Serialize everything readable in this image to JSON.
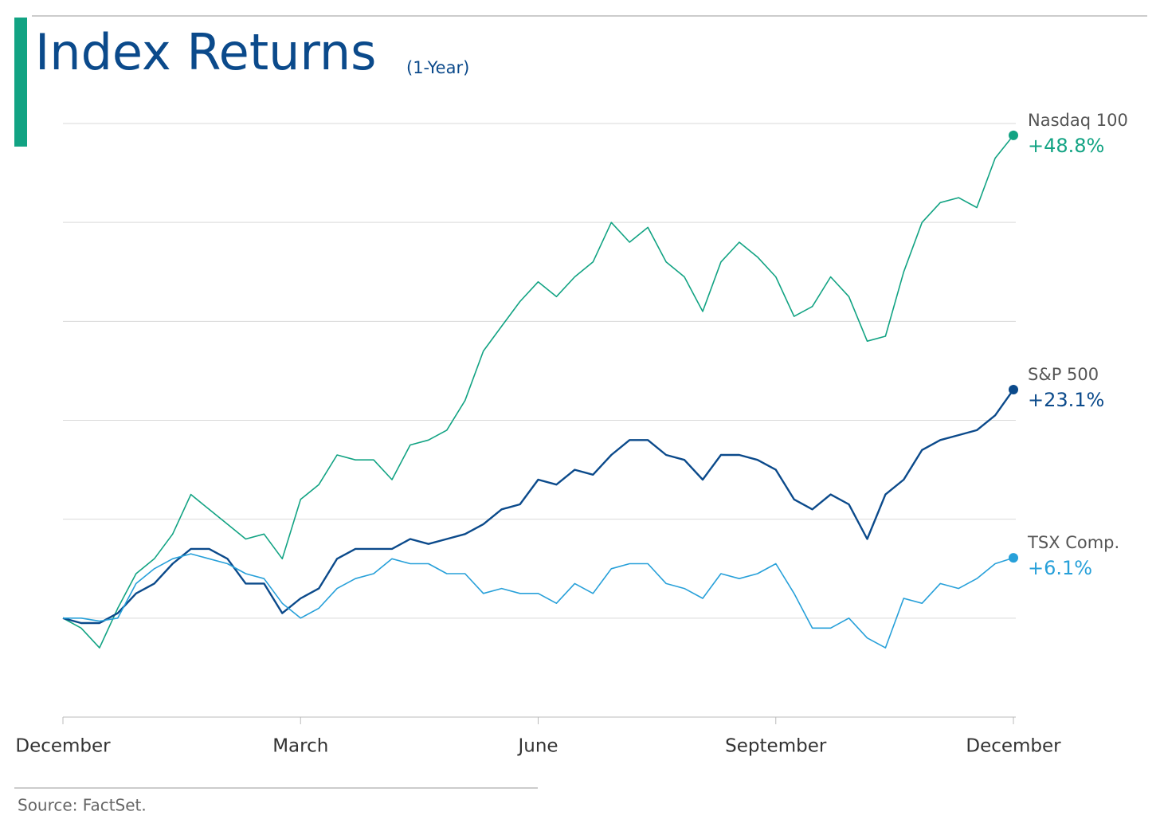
{
  "chart_data": {
    "type": "line",
    "title": "Index Returns",
    "subtitle": "(1-Year)",
    "source": "Source: FactSet.",
    "x": [
      0,
      1,
      2,
      3,
      4,
      5,
      6,
      7,
      8,
      9,
      10,
      11,
      12,
      13,
      14,
      15,
      16,
      17,
      18,
      19,
      20,
      21,
      22,
      23,
      24,
      25,
      26,
      27,
      28,
      29,
      30,
      31,
      32,
      33,
      34,
      35,
      36,
      37,
      38,
      39,
      40,
      41,
      42,
      43,
      44,
      45,
      46,
      47,
      48,
      49,
      50,
      51,
      52
    ],
    "xlim": [
      0,
      52
    ],
    "xticks": [
      {
        "value": 0,
        "label": "December"
      },
      {
        "value": 13,
        "label": "March"
      },
      {
        "value": 26,
        "label": "June"
      },
      {
        "value": 39,
        "label": "September"
      },
      {
        "value": 52,
        "label": "December"
      }
    ],
    "ylim": [
      -10,
      50
    ],
    "yticks": [
      -10,
      0,
      10,
      20,
      30,
      40,
      50
    ],
    "grid": true,
    "series": [
      {
        "name": "Nasdaq 100",
        "color": "#12a383",
        "end_label": "+48.8%",
        "values": [
          0,
          -1,
          -3,
          1,
          4.5,
          6,
          8.5,
          12.5,
          11,
          9.5,
          8,
          8.5,
          6,
          12,
          13.5,
          16.5,
          16,
          16,
          14,
          17.5,
          18,
          19,
          22,
          27,
          29.5,
          32,
          34,
          32.5,
          34.5,
          36,
          40,
          38,
          39.5,
          36,
          34.5,
          31,
          36,
          38,
          36.5,
          34.5,
          30.5,
          31.5,
          34.5,
          32.5,
          28,
          28.5,
          35,
          40,
          42,
          42.5,
          41.5,
          46.5,
          48.8
        ]
      },
      {
        "name": "S&P 500",
        "color": "#0b4a8b",
        "end_label": "+23.1%",
        "values": [
          0,
          -0.5,
          -0.5,
          0.5,
          2.5,
          3.5,
          5.5,
          7,
          7,
          6,
          3.5,
          3.5,
          0.5,
          2,
          3,
          6,
          7,
          7,
          7,
          8,
          7.5,
          8,
          8.5,
          9.5,
          11,
          11.5,
          14,
          13.5,
          15,
          14.5,
          16.5,
          18,
          18,
          16.5,
          16,
          14,
          16.5,
          16.5,
          16,
          15,
          12,
          11,
          12.5,
          11.5,
          8,
          12.5,
          14,
          17,
          18,
          18.5,
          19,
          20.5,
          23.1
        ]
      },
      {
        "name": "TSX Comp.",
        "color": "#27a0d9",
        "end_label": "+6.1%",
        "values": [
          0,
          0,
          -0.3,
          0,
          3.5,
          5,
          6,
          6.5,
          6,
          5.5,
          4.5,
          4,
          1.5,
          0,
          1,
          3,
          4,
          4.5,
          6,
          5.5,
          5.5,
          4.5,
          4.5,
          2.5,
          3,
          2.5,
          2.5,
          1.5,
          3.5,
          2.5,
          5,
          5.5,
          5.5,
          3.5,
          3,
          2,
          4.5,
          4,
          4.5,
          5.5,
          2.5,
          -1,
          -1,
          0,
          -2,
          -3,
          2,
          1.5,
          3.5,
          3,
          4,
          5.5,
          6.1
        ]
      }
    ]
  }
}
